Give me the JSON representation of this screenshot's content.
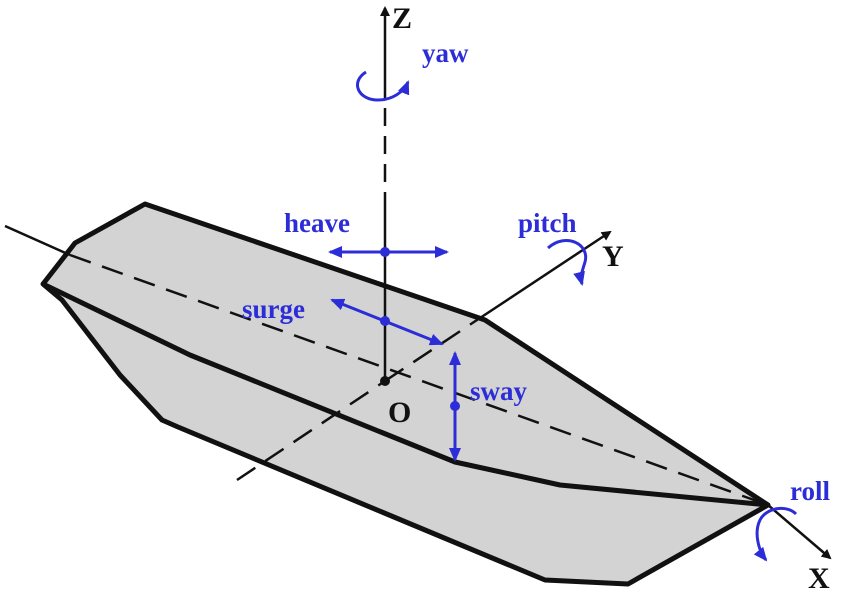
{
  "axes": {
    "x": "X",
    "y": "Y",
    "z": "Z",
    "origin": "O"
  },
  "motions": {
    "yaw": "yaw",
    "heave": "heave",
    "pitch": "pitch",
    "surge": "surge",
    "sway": "sway",
    "roll": "roll"
  },
  "colors": {
    "hull_fill": "#d3d3d3",
    "hull_stroke": "#111111",
    "motion": "#2d2dd8",
    "axis": "#111111"
  }
}
